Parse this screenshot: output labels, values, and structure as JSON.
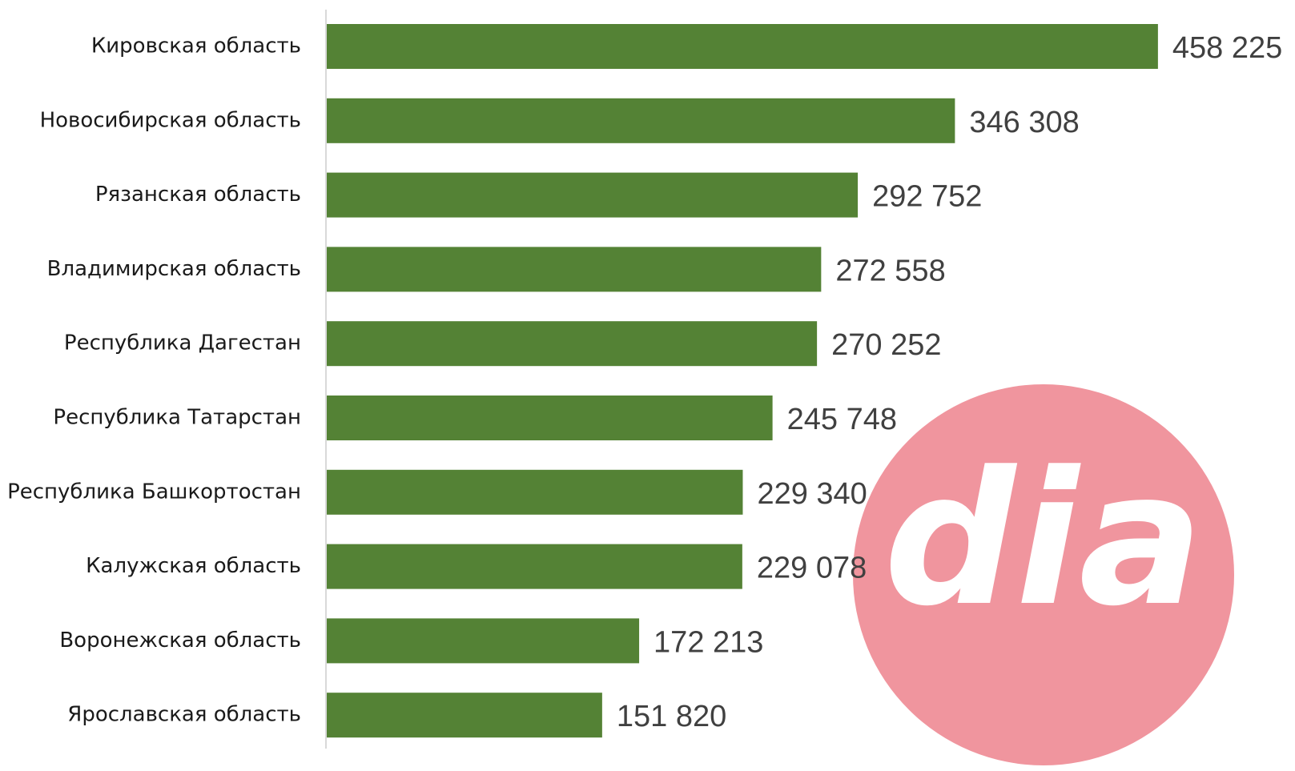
{
  "chart_data": {
    "type": "barh",
    "categories": [
      "Кировская область",
      "Новосибирская область",
      "Рязанская область",
      "Владимирская область",
      "Республика Дагестан",
      "Республика Татарстан",
      "Республика Башкортостан",
      "Калужская область",
      "Воронежская область",
      "Ярославская область"
    ],
    "values": [
      458225,
      346308,
      292752,
      272558,
      270252,
      245748,
      229340,
      229078,
      172213,
      151820
    ],
    "value_labels": [
      "458 225",
      "346 308",
      "292 752",
      "272 558",
      "270 252",
      "245 748",
      "229 340",
      "229 078",
      "172 213",
      "151 820"
    ],
    "color": "#548235",
    "xlim": [
      0,
      500000
    ],
    "grid": false,
    "watermark": "dia"
  }
}
